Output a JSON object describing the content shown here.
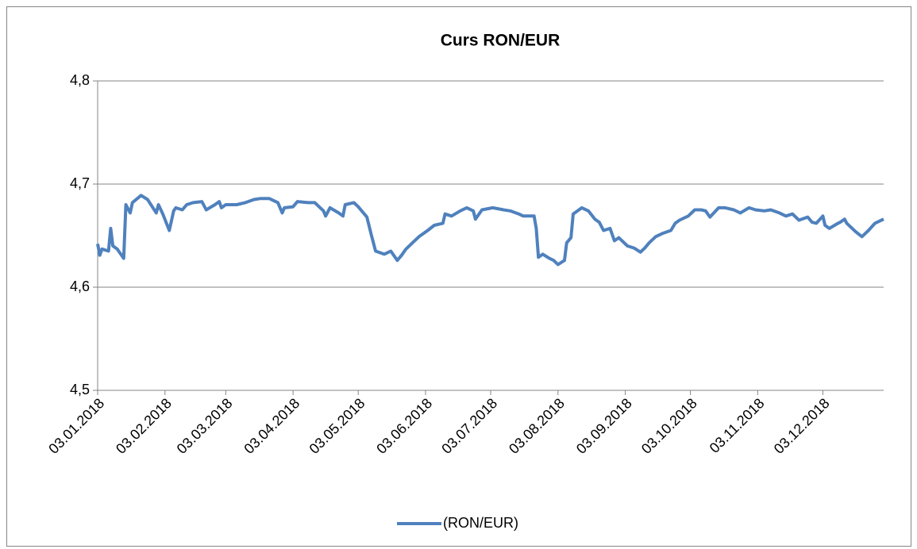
{
  "chart_data": {
    "type": "line",
    "title": "Curs RON/EUR",
    "x": [
      "03.01.2018",
      "04.01.2018",
      "05.01.2018",
      "08.01.2018",
      "09.01.2018",
      "10.01.2018",
      "12.01.2018",
      "15.01.2018",
      "16.01.2018",
      "18.01.2018",
      "19.01.2018",
      "23.01.2018",
      "26.01.2018",
      "30.01.2018",
      "31.01.2018",
      "02.02.2018",
      "05.02.2018",
      "07.02.2018",
      "08.02.2018",
      "11.02.2018",
      "13.02.2018",
      "16.02.2018",
      "20.02.2018",
      "22.02.2018",
      "26.02.2018",
      "28.02.2018",
      "01.03.2018",
      "03.03.2018",
      "08.03.2018",
      "12.03.2018",
      "16.03.2018",
      "19.03.2018",
      "23.03.2018",
      "27.03.2018",
      "29.03.2018",
      "30.03.2018",
      "03.04.2018",
      "05.04.2018",
      "10.04.2018",
      "13.04.2018",
      "17.04.2018",
      "18.04.2018",
      "20.04.2018",
      "24.04.2018",
      "26.04.2018",
      "27.04.2018",
      "01.05.2018",
      "03.05.2018",
      "07.05.2018",
      "09.05.2018",
      "11.05.2018",
      "15.05.2018",
      "18.05.2018",
      "21.05.2018",
      "23.05.2018",
      "25.05.2018",
      "28.05.2018",
      "31.05.2018",
      "04.06.2018",
      "07.06.2018",
      "11.06.2018",
      "12.06.2018",
      "15.06.2018",
      "19.06.2018",
      "22.06.2018",
      "25.06.2018",
      "26.06.2018",
      "29.06.2018",
      "04.07.2018",
      "09.07.2018",
      "12.07.2018",
      "16.07.2018",
      "18.07.2018",
      "20.07.2018",
      "23.07.2018",
      "24.07.2018",
      "25.07.2018",
      "27.07.2018",
      "30.07.2018",
      "01.08.2018",
      "03.08.2018",
      "06.08.2018",
      "07.08.2018",
      "09.08.2018",
      "10.08.2018",
      "14.08.2018",
      "17.08.2018",
      "20.08.2018",
      "22.08.2018",
      "24.08.2018",
      "27.08.2018",
      "29.08.2018",
      "31.08.2018",
      "04.09.2018",
      "07.09.2018",
      "10.09.2018",
      "12.09.2018",
      "14.09.2018",
      "17.09.2018",
      "20.09.2018",
      "24.09.2018",
      "26.09.2018",
      "28.09.2018",
      "02.10.2018",
      "05.10.2018",
      "08.10.2018",
      "10.10.2018",
      "12.10.2018",
      "16.10.2018",
      "19.10.2018",
      "23.10.2018",
      "26.10.2018",
      "30.10.2018",
      "02.11.2018",
      "06.11.2018",
      "09.11.2018",
      "13.11.2018",
      "16.11.2018",
      "19.11.2018",
      "22.11.2018",
      "26.11.2018",
      "28.11.2018",
      "30.11.2018",
      "03.12.2018",
      "04.12.2018",
      "06.12.2018",
      "10.12.2018",
      "11.12.2018",
      "13.12.2018",
      "14.12.2018",
      "18.12.2018",
      "21.12.2018",
      "24.12.2018",
      "27.12.2018",
      "31.12.2018"
    ],
    "series": [
      {
        "name": "(RON/EUR)",
        "color": "#4f81bd",
        "values": [
          4.642,
          4.631,
          4.637,
          4.635,
          4.657,
          4.64,
          4.637,
          4.628,
          4.68,
          4.672,
          4.682,
          4.689,
          4.685,
          4.672,
          4.68,
          4.671,
          4.655,
          4.674,
          4.677,
          4.675,
          4.68,
          4.682,
          4.683,
          4.675,
          4.68,
          4.683,
          4.677,
          4.68,
          4.68,
          4.682,
          4.685,
          4.686,
          4.686,
          4.682,
          4.672,
          4.677,
          4.678,
          4.683,
          4.682,
          4.682,
          4.674,
          4.669,
          4.677,
          4.672,
          4.669,
          4.68,
          4.682,
          4.678,
          4.668,
          4.651,
          4.635,
          4.632,
          4.635,
          4.626,
          4.631,
          4.637,
          4.643,
          4.649,
          4.655,
          4.66,
          4.662,
          4.671,
          4.669,
          4.674,
          4.677,
          4.674,
          4.666,
          4.675,
          4.677,
          4.675,
          4.674,
          4.671,
          4.669,
          4.669,
          4.669,
          4.657,
          4.629,
          4.632,
          4.628,
          4.626,
          4.622,
          4.626,
          4.643,
          4.648,
          4.671,
          4.677,
          4.674,
          4.666,
          4.663,
          4.655,
          4.657,
          4.645,
          4.648,
          4.64,
          4.638,
          4.634,
          4.638,
          4.643,
          4.649,
          4.652,
          4.655,
          4.662,
          4.665,
          4.669,
          4.675,
          4.675,
          4.674,
          4.668,
          4.677,
          4.677,
          4.675,
          4.672,
          4.677,
          4.675,
          4.674,
          4.675,
          4.672,
          4.669,
          4.671,
          4.665,
          4.668,
          4.663,
          4.662,
          4.669,
          4.66,
          4.657,
          4.662,
          4.663,
          4.666,
          4.662,
          4.654,
          4.649,
          4.655,
          4.662,
          4.666
        ]
      }
    ],
    "xlim": [
      "03.01.2018",
      "31.12.2018"
    ],
    "xticks": [
      "03.01.2018",
      "03.02.2018",
      "03.03.2018",
      "03.04.2018",
      "03.05.2018",
      "03.06.2018",
      "03.07.2018",
      "03.08.2018",
      "03.09.2018",
      "03.10.2018",
      "03.11.2018",
      "03.12.2018"
    ],
    "ylim": [
      4.5,
      4.8
    ],
    "yticks": [
      {
        "value": 4.5,
        "label": "4,5"
      },
      {
        "value": 4.6,
        "label": "4,6"
      },
      {
        "value": 4.7,
        "label": "4,7"
      },
      {
        "value": 4.8,
        "label": "4,8"
      }
    ],
    "grid": true,
    "legend": "bottom"
  }
}
